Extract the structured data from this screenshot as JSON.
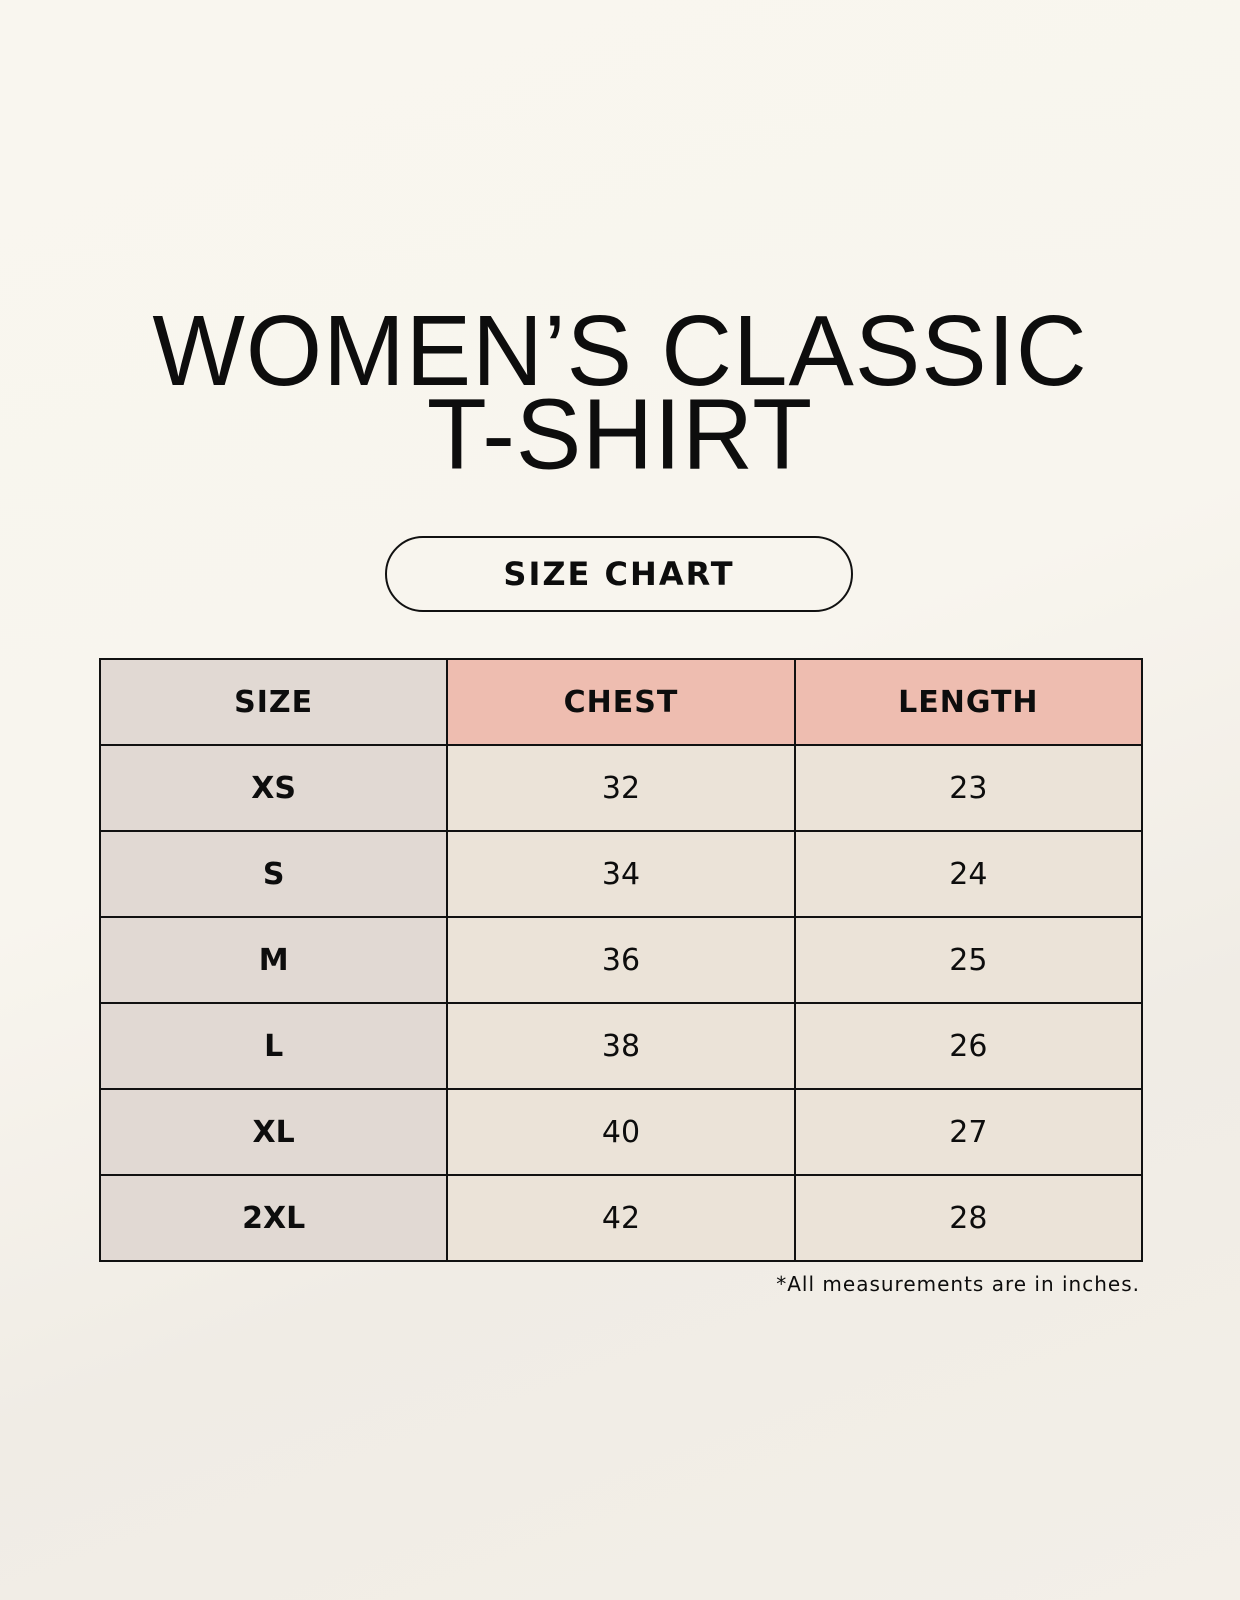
{
  "title_lines": [
    "WOMEN’S CLASSIC",
    "T-SHIRT"
  ],
  "subtitle": "SIZE CHART",
  "table": {
    "headers": [
      "SIZE",
      "CHEST",
      "LENGTH"
    ],
    "rows": [
      [
        "XS",
        "32",
        "23"
      ],
      [
        "S",
        "34",
        "24"
      ],
      [
        "M",
        "36",
        "25"
      ],
      [
        "L",
        "38",
        "26"
      ],
      [
        "XL",
        "40",
        "27"
      ],
      [
        "2XL",
        "42",
        "28"
      ]
    ]
  },
  "footnote": "*All measurements are in inches.",
  "colors": {
    "size_column": "#e1d9d3",
    "header_accent": "#eebdb0",
    "value_cells": "#ebe3d8"
  }
}
